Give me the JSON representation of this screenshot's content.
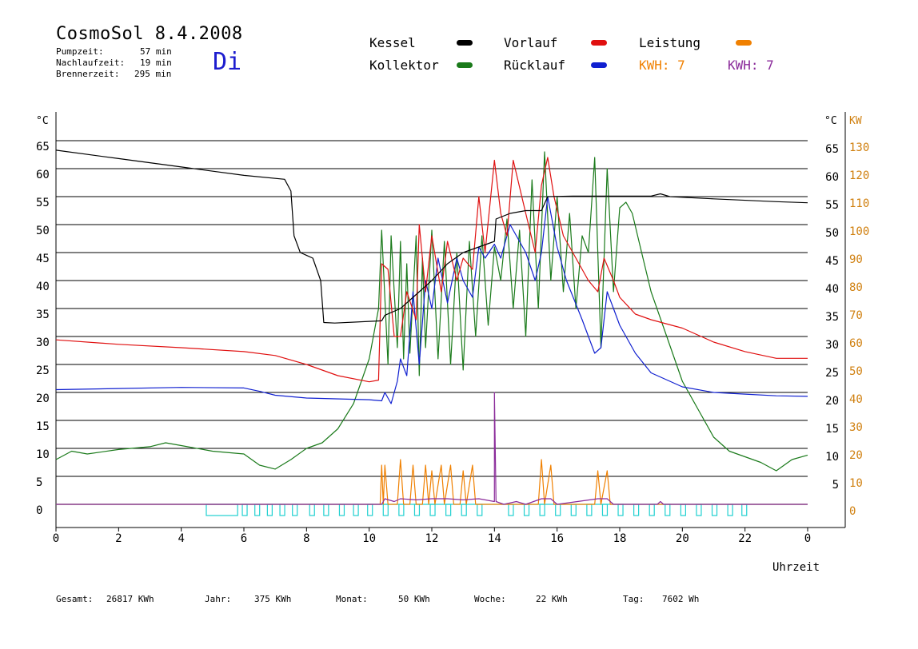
{
  "header": {
    "title": "CosmoSol 8.4.2008",
    "day": "Di",
    "stats": [
      {
        "label": "Pumpzeit:",
        "value": "57 min"
      },
      {
        "label": "Nachlaufzeit:",
        "value": "19 min"
      },
      {
        "label": "Brennerzeit:",
        "value": "295 min"
      }
    ]
  },
  "legend": {
    "kessel": "Kessel",
    "kollektor": "Kollektor",
    "vorlauf": "Vorlauf",
    "ruecklauf": "Rücklauf",
    "leistung": "Leistung",
    "kwh_orange": "KWH: 7",
    "kwh_purple": "KWH: 7"
  },
  "footer": {
    "gesamt_label": "Gesamt:",
    "gesamt_value": "26817 KWh",
    "jahr_label": "Jahr:",
    "jahr_value": "375 KWh",
    "monat_label": "Monat:",
    "monat_value": "50 KWh",
    "woche_label": "Woche:",
    "woche_value": "22 KWh",
    "tag_label": "Tag:",
    "tag_value": "7602 Wh"
  },
  "colors": {
    "kessel": "#000000",
    "kollektor": "#1a7a1a",
    "vorlauf": "#e01010",
    "ruecklauf": "#1020d0",
    "leistung": "#f08000",
    "kwh_purple": "#8a2a9a",
    "pump": "#20d0d0"
  },
  "chart_data": {
    "type": "line",
    "xlabel": "Uhrzeit",
    "ylabel_left": "°C",
    "ylabel_right_unit": "°C",
    "ylabel_right_power": "KW",
    "x_ticks": [
      "0",
      "2",
      "4",
      "6",
      "8",
      "10",
      "12",
      "14",
      "16",
      "18",
      "20",
      "22",
      "0"
    ],
    "y_ticks_left": [
      "0",
      "5",
      "10",
      "15",
      "20",
      "25",
      "30",
      "35",
      "40",
      "45",
      "50",
      "55",
      "60",
      "65"
    ],
    "y_ticks_right_temp": [
      "5",
      "10",
      "15",
      "20",
      "25",
      "30",
      "35",
      "40",
      "45",
      "50",
      "55",
      "60",
      "65"
    ],
    "y_ticks_right_power": [
      "0",
      "10",
      "20",
      "30",
      "40",
      "50",
      "60",
      "70",
      "80",
      "90",
      "100",
      "110",
      "120",
      "130"
    ],
    "xlim": [
      0,
      24
    ],
    "ylim": [
      0,
      65
    ],
    "grid": true,
    "series": [
      {
        "name": "Kessel",
        "key": "kessel",
        "points": [
          [
            0,
            63.3
          ],
          [
            2,
            61.8
          ],
          [
            4,
            60.3
          ],
          [
            6,
            58.8
          ],
          [
            7.3,
            58.1
          ],
          [
            7.5,
            56
          ],
          [
            7.6,
            48
          ],
          [
            7.8,
            45
          ],
          [
            8.2,
            44
          ],
          [
            8.45,
            40
          ],
          [
            8.55,
            32.5
          ],
          [
            8.9,
            32.4
          ],
          [
            10,
            32.7
          ],
          [
            10.4,
            32.8
          ],
          [
            10.5,
            33.8
          ],
          [
            11,
            35
          ],
          [
            11.5,
            37.5
          ],
          [
            12,
            40
          ],
          [
            12.5,
            43
          ],
          [
            13,
            45
          ],
          [
            13.5,
            46
          ],
          [
            14,
            47
          ],
          [
            14.05,
            51
          ],
          [
            14.5,
            52
          ],
          [
            15,
            52.5
          ],
          [
            15.5,
            52.5
          ],
          [
            15.7,
            55
          ],
          [
            16.5,
            55.1
          ],
          [
            17.5,
            55.1
          ],
          [
            19,
            55.1
          ],
          [
            19.3,
            55.5
          ],
          [
            19.6,
            55
          ],
          [
            21,
            54.6
          ],
          [
            23,
            54.1
          ],
          [
            24,
            53.9
          ]
        ]
      },
      {
        "name": "Kollektor",
        "key": "kollektor",
        "points": [
          [
            0,
            8
          ],
          [
            0.5,
            9.5
          ],
          [
            1,
            9
          ],
          [
            2,
            9.8
          ],
          [
            3,
            10.3
          ],
          [
            3.5,
            11
          ],
          [
            4,
            10.5
          ],
          [
            5,
            9.5
          ],
          [
            6,
            9
          ],
          [
            6.5,
            7
          ],
          [
            7,
            6.3
          ],
          [
            7.5,
            8
          ],
          [
            8,
            10
          ],
          [
            8.5,
            11
          ],
          [
            9,
            13.5
          ],
          [
            9.5,
            18
          ],
          [
            10,
            26
          ],
          [
            10.3,
            35
          ],
          [
            10.4,
            49
          ],
          [
            10.6,
            25
          ],
          [
            10.7,
            48
          ],
          [
            10.9,
            28
          ],
          [
            11,
            47
          ],
          [
            11.1,
            26
          ],
          [
            11.2,
            43
          ],
          [
            11.3,
            27
          ],
          [
            11.5,
            48
          ],
          [
            11.6,
            23
          ],
          [
            11.7,
            44
          ],
          [
            11.8,
            28
          ],
          [
            12,
            49
          ],
          [
            12.2,
            26
          ],
          [
            12.4,
            47
          ],
          [
            12.6,
            25
          ],
          [
            12.8,
            45
          ],
          [
            13,
            24
          ],
          [
            13.2,
            47
          ],
          [
            13.4,
            30
          ],
          [
            13.6,
            48
          ],
          [
            13.8,
            32
          ],
          [
            14,
            46
          ],
          [
            14.2,
            40
          ],
          [
            14.4,
            51
          ],
          [
            14.6,
            35
          ],
          [
            14.8,
            49
          ],
          [
            15,
            30
          ],
          [
            15.2,
            58
          ],
          [
            15.4,
            35
          ],
          [
            15.6,
            63
          ],
          [
            15.8,
            40
          ],
          [
            16,
            55
          ],
          [
            16.2,
            38
          ],
          [
            16.4,
            52
          ],
          [
            16.6,
            35
          ],
          [
            16.8,
            48
          ],
          [
            17,
            45
          ],
          [
            17.2,
            62
          ],
          [
            17.4,
            28
          ],
          [
            17.6,
            60
          ],
          [
            17.8,
            38
          ],
          [
            18,
            53
          ],
          [
            18.2,
            54
          ],
          [
            18.4,
            52
          ],
          [
            18.7,
            45
          ],
          [
            19,
            38
          ],
          [
            19.5,
            30
          ],
          [
            20,
            22
          ],
          [
            20.5,
            17
          ],
          [
            21,
            12
          ],
          [
            21.5,
            9.5
          ],
          [
            22,
            8.5
          ],
          [
            22.5,
            7.5
          ],
          [
            23,
            6
          ],
          [
            23.5,
            8
          ],
          [
            24,
            8.8
          ]
        ]
      },
      {
        "name": "Vorlauf",
        "key": "vorlauf",
        "points": [
          [
            0,
            29.4
          ],
          [
            2,
            28.6
          ],
          [
            4,
            28
          ],
          [
            6,
            27.3
          ],
          [
            7,
            26.6
          ],
          [
            8,
            25
          ],
          [
            9,
            23
          ],
          [
            10,
            21.9
          ],
          [
            10.3,
            22.2
          ],
          [
            10.4,
            43
          ],
          [
            10.6,
            42
          ],
          [
            10.8,
            30
          ],
          [
            11,
            30
          ],
          [
            11.2,
            38
          ],
          [
            11.5,
            33
          ],
          [
            11.6,
            50
          ],
          [
            11.8,
            38
          ],
          [
            12,
            48
          ],
          [
            12.3,
            38
          ],
          [
            12.5,
            47
          ],
          [
            12.8,
            40
          ],
          [
            13,
            44
          ],
          [
            13.3,
            42
          ],
          [
            13.5,
            55
          ],
          [
            13.7,
            45
          ],
          [
            14,
            61.5
          ],
          [
            14.2,
            52
          ],
          [
            14.4,
            48
          ],
          [
            14.6,
            61.5
          ],
          [
            15,
            52
          ],
          [
            15.3,
            45
          ],
          [
            15.5,
            57
          ],
          [
            15.7,
            62
          ],
          [
            15.9,
            55
          ],
          [
            16.2,
            48
          ],
          [
            16.5,
            45
          ],
          [
            17,
            40
          ],
          [
            17.3,
            38
          ],
          [
            17.5,
            44
          ],
          [
            17.8,
            40
          ],
          [
            18,
            37
          ],
          [
            18.5,
            34
          ],
          [
            19,
            33
          ],
          [
            20,
            31.5
          ],
          [
            21,
            29
          ],
          [
            22,
            27.3
          ],
          [
            23,
            26.1
          ],
          [
            24,
            26.1
          ]
        ]
      },
      {
        "name": "Rücklauf",
        "key": "ruecklauf",
        "points": [
          [
            0,
            20.5
          ],
          [
            2,
            20.7
          ],
          [
            4,
            20.9
          ],
          [
            6,
            20.8
          ],
          [
            6.5,
            20.2
          ],
          [
            7,
            19.5
          ],
          [
            8,
            19
          ],
          [
            10,
            18.7
          ],
          [
            10.4,
            18.5
          ],
          [
            10.5,
            20
          ],
          [
            10.7,
            18
          ],
          [
            10.9,
            22
          ],
          [
            11,
            26
          ],
          [
            11.2,
            23
          ],
          [
            11.4,
            38
          ],
          [
            11.6,
            25
          ],
          [
            11.8,
            40
          ],
          [
            12,
            35
          ],
          [
            12.2,
            44
          ],
          [
            12.5,
            36
          ],
          [
            12.8,
            44
          ],
          [
            13,
            40
          ],
          [
            13.3,
            37
          ],
          [
            13.5,
            46
          ],
          [
            13.7,
            44
          ],
          [
            14,
            46.5
          ],
          [
            14.2,
            44
          ],
          [
            14.5,
            50
          ],
          [
            15,
            45
          ],
          [
            15.3,
            40
          ],
          [
            15.5,
            45
          ],
          [
            15.7,
            55
          ],
          [
            16,
            46
          ],
          [
            16.3,
            40
          ],
          [
            16.8,
            33
          ],
          [
            17.2,
            27
          ],
          [
            17.4,
            28
          ],
          [
            17.6,
            38
          ],
          [
            17.8,
            35
          ],
          [
            18,
            32
          ],
          [
            18.5,
            27
          ],
          [
            19,
            23.5
          ],
          [
            20,
            21
          ],
          [
            21,
            20
          ],
          [
            22,
            19.7
          ],
          [
            23,
            19.4
          ],
          [
            24,
            19.3
          ]
        ]
      },
      {
        "name": "Leistung",
        "key": "leistung",
        "points": [
          [
            0,
            0
          ],
          [
            10.35,
            0
          ],
          [
            10.4,
            7
          ],
          [
            10.45,
            0
          ],
          [
            10.5,
            7
          ],
          [
            10.6,
            0
          ],
          [
            10.9,
            0
          ],
          [
            11,
            8
          ],
          [
            11.1,
            0
          ],
          [
            11.3,
            0
          ],
          [
            11.4,
            7
          ],
          [
            11.5,
            0
          ],
          [
            11.7,
            0
          ],
          [
            11.8,
            7
          ],
          [
            11.9,
            0
          ],
          [
            12,
            6
          ],
          [
            12.1,
            0
          ],
          [
            12.3,
            7
          ],
          [
            12.4,
            0
          ],
          [
            12.6,
            7
          ],
          [
            12.7,
            0
          ],
          [
            12.9,
            0
          ],
          [
            13,
            6
          ],
          [
            13.1,
            0
          ],
          [
            13.3,
            7
          ],
          [
            13.4,
            0
          ],
          [
            14.2,
            0
          ],
          [
            15.4,
            0
          ],
          [
            15.5,
            8
          ],
          [
            15.6,
            0
          ],
          [
            15.8,
            7
          ],
          [
            15.9,
            0
          ],
          [
            17.2,
            0
          ],
          [
            17.3,
            6
          ],
          [
            17.4,
            0
          ],
          [
            17.6,
            6
          ],
          [
            17.7,
            0
          ],
          [
            24,
            0
          ]
        ]
      },
      {
        "name": "KWH",
        "key": "kwh_purple",
        "points": [
          [
            0,
            0
          ],
          [
            10.4,
            0
          ],
          [
            10.5,
            1
          ],
          [
            10.8,
            0.5
          ],
          [
            11,
            1
          ],
          [
            11.5,
            0.8
          ],
          [
            12,
            1
          ],
          [
            12.5,
            1
          ],
          [
            13,
            0.8
          ],
          [
            13.5,
            1
          ],
          [
            14,
            0.5
          ],
          [
            14,
            20
          ],
          [
            14.05,
            0.5
          ],
          [
            14.3,
            0
          ],
          [
            14.7,
            0.5
          ],
          [
            15,
            0
          ],
          [
            15.5,
            1
          ],
          [
            15.8,
            1
          ],
          [
            16,
            0
          ],
          [
            17.3,
            1
          ],
          [
            17.6,
            1
          ],
          [
            17.8,
            0
          ],
          [
            19.2,
            0
          ],
          [
            19.3,
            0.5
          ],
          [
            19.4,
            0
          ],
          [
            24,
            0
          ]
        ]
      }
    ],
    "pump_state": {
      "name": "Pumpe",
      "level": 0,
      "spans": [
        [
          4.8,
          5.8
        ],
        [
          5.95,
          6.05
        ],
        [
          6.35,
          6.45
        ],
        [
          6.75,
          6.85
        ],
        [
          7.15,
          7.25
        ],
        [
          7.55,
          7.65
        ],
        [
          8.1,
          8.2
        ],
        [
          8.55,
          8.65
        ],
        [
          9.05,
          9.15
        ],
        [
          9.5,
          9.6
        ],
        [
          9.95,
          10.05
        ],
        [
          10.45,
          10.55
        ],
        [
          10.95,
          11.05
        ],
        [
          11.45,
          11.55
        ],
        [
          11.95,
          12.05
        ],
        [
          12.45,
          12.55
        ],
        [
          12.95,
          13.05
        ],
        [
          13.45,
          13.55
        ],
        [
          14.45,
          14.55
        ],
        [
          14.95,
          15.05
        ],
        [
          15.45,
          15.55
        ],
        [
          15.95,
          16.05
        ],
        [
          16.45,
          16.55
        ],
        [
          16.95,
          17.05
        ],
        [
          17.45,
          17.55
        ],
        [
          17.95,
          18.05
        ],
        [
          18.45,
          18.55
        ],
        [
          18.95,
          19.05
        ],
        [
          19.45,
          19.55
        ],
        [
          19.95,
          20.05
        ],
        [
          20.45,
          20.55
        ],
        [
          20.95,
          21.05
        ],
        [
          21.45,
          21.55
        ],
        [
          21.9,
          22.0
        ]
      ]
    }
  }
}
